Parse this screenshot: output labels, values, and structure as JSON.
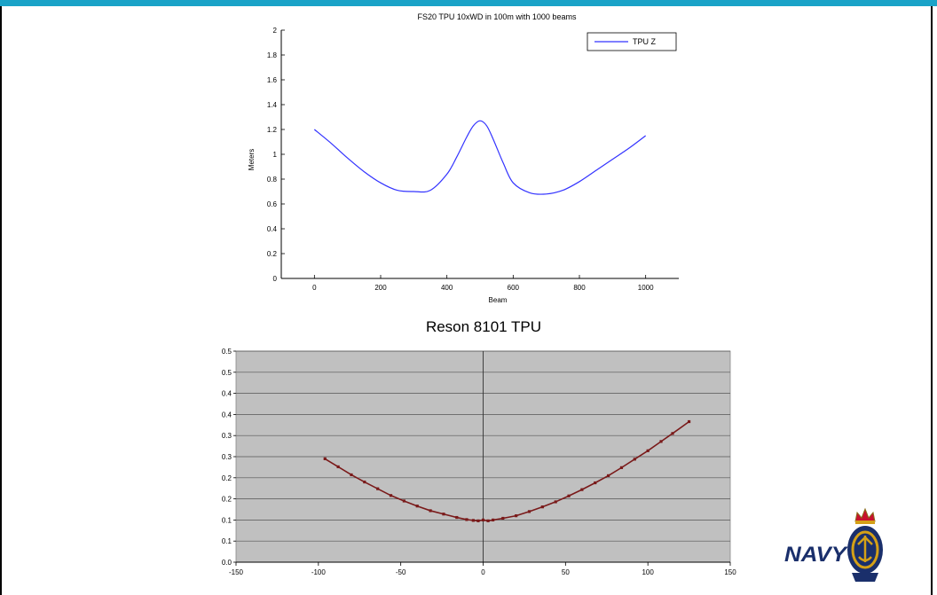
{
  "charts": {
    "top": {
      "title": "FS20 TPU 10xWD in 100m with 1000 beams",
      "xlabel": "Beam",
      "ylabel": "Meters",
      "legend_label": "TPU Z"
    },
    "bottom": {
      "title": "Reson 8101 TPU"
    }
  },
  "logo": {
    "text": "NAVY"
  },
  "colors": {
    "accent_bar": "#1aa3c8",
    "series_top": "#3333ff",
    "series_bottom": "#7a1a1a",
    "plot_bg_bottom": "#c0c0c0"
  },
  "chart_data": [
    {
      "type": "line",
      "title": "FS20 TPU 10xWD in 100m with 1000 beams",
      "xlabel": "Beam",
      "ylabel": "Meters",
      "xlim": [
        -100,
        1100
      ],
      "ylim": [
        0,
        2
      ],
      "xticks": [
        0,
        200,
        400,
        600,
        800,
        1000
      ],
      "yticks": [
        0,
        0.2,
        0.4,
        0.6,
        0.8,
        1,
        1.2,
        1.4,
        1.6,
        1.8,
        2
      ],
      "legend": "top-right",
      "grid": false,
      "series": [
        {
          "name": "TPU Z",
          "x": [
            0,
            50,
            100,
            150,
            200,
            250,
            300,
            350,
            400,
            430,
            460,
            480,
            500,
            520,
            540,
            570,
            600,
            650,
            700,
            750,
            800,
            850,
            900,
            950,
            1000
          ],
          "y": [
            1.2,
            1.09,
            0.97,
            0.86,
            0.77,
            0.71,
            0.7,
            0.71,
            0.84,
            0.98,
            1.14,
            1.23,
            1.27,
            1.23,
            1.12,
            0.93,
            0.77,
            0.69,
            0.68,
            0.71,
            0.78,
            0.87,
            0.96,
            1.05,
            1.15
          ]
        }
      ]
    },
    {
      "type": "line",
      "title": "Reson 8101 TPU",
      "xlim": [
        -150,
        150
      ],
      "ylim": [
        0,
        0.5
      ],
      "xticks": [
        -150,
        -100,
        -50,
        0,
        50,
        100,
        150
      ],
      "yticks": [
        0,
        0.05,
        0.1,
        0.15,
        0.2,
        0.25,
        0.3,
        0.35,
        0.4,
        0.45,
        0.5
      ],
      "ytick_labels": [
        "0.0",
        "0.1",
        "0.1",
        "0.2",
        "0.2",
        "0.3",
        "0.3",
        "0.4",
        "0.4",
        "0.5",
        "0.5"
      ],
      "grid": true,
      "series": [
        {
          "x": [
            -96,
            -88,
            -80,
            -72,
            -64,
            -56,
            -48,
            -40,
            -32,
            -24,
            -16,
            -10,
            -6,
            -3,
            0,
            3,
            6,
            12,
            20,
            28,
            36,
            44,
            52,
            60,
            68,
            76,
            84,
            92,
            100,
            108,
            115,
            125
          ],
          "y": [
            0.245,
            0.226,
            0.207,
            0.19,
            0.174,
            0.158,
            0.145,
            0.133,
            0.122,
            0.114,
            0.106,
            0.101,
            0.099,
            0.098,
            0.1,
            0.098,
            0.1,
            0.104,
            0.11,
            0.12,
            0.131,
            0.143,
            0.157,
            0.172,
            0.188,
            0.205,
            0.224,
            0.244,
            0.264,
            0.286,
            0.305,
            0.333
          ]
        }
      ]
    }
  ]
}
